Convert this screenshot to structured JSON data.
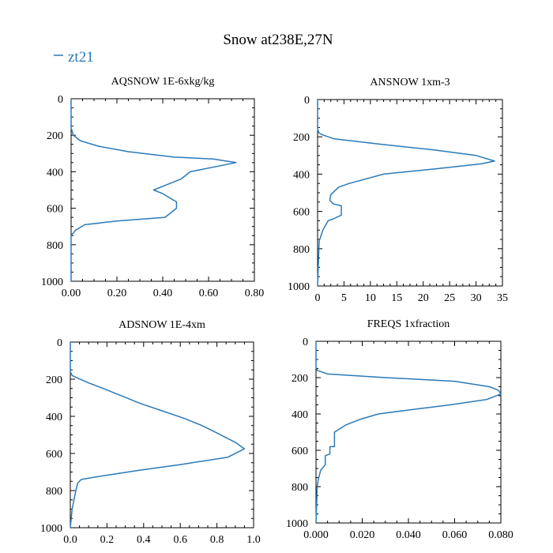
{
  "figure": {
    "title": "Snow at238E,27N",
    "legend_label": "zt21",
    "line_color": "#2a7ab9"
  },
  "chart_data": [
    {
      "type": "line",
      "title": "AQSNOW  1E-6xkg/kg",
      "xlim": [
        0,
        0.8
      ],
      "ylim": [
        1000,
        0
      ],
      "xticks": [
        0,
        0.2,
        0.4,
        0.6,
        0.8
      ],
      "xtick_labels": [
        "0.00",
        "0.20",
        "0.40",
        "0.60",
        "0.80"
      ],
      "yticks": [
        0,
        200,
        400,
        600,
        800,
        1000
      ],
      "ytick_labels": [
        "0",
        "200",
        "400",
        "600",
        "800",
        "1000"
      ],
      "series": [
        {
          "name": "zt21",
          "x": [
            0,
            0,
            0.005,
            0.01,
            0.04,
            0.12,
            0.25,
            0.45,
            0.62,
            0.72,
            0.52,
            0.48,
            0.42,
            0.36,
            0.4,
            0.44,
            0.46,
            0.46,
            0.41,
            0.2,
            0.06,
            0.02,
            0,
            0
          ],
          "y": [
            0,
            160,
            180,
            200,
            230,
            260,
            290,
            320,
            330,
            350,
            400,
            440,
            470,
            500,
            520,
            550,
            565,
            600,
            650,
            670,
            690,
            720,
            750,
            1000
          ]
        }
      ]
    },
    {
      "type": "line",
      "title": "ANSNOW  1xm-3",
      "xlim": [
        0,
        35
      ],
      "ylim": [
        1000,
        0
      ],
      "xticks": [
        0,
        5,
        10,
        15,
        20,
        25,
        30,
        35
      ],
      "xtick_labels": [
        "0",
        "5",
        "10",
        "15",
        "20",
        "25",
        "30",
        "35"
      ],
      "yticks": [
        0,
        200,
        400,
        600,
        800,
        1000
      ],
      "ytick_labels": [
        "0",
        "200",
        "400",
        "600",
        "800",
        "1000"
      ],
      "series": [
        {
          "name": "zt21",
          "x": [
            0,
            0,
            0.3,
            1,
            3,
            12,
            22,
            30,
            33.5,
            31,
            23,
            12.5,
            6,
            4,
            2.5,
            2.3,
            3,
            4.5,
            4.5,
            3,
            2,
            1,
            0.3,
            0
          ],
          "y": [
            0,
            160,
            180,
            190,
            210,
            240,
            270,
            300,
            330,
            345,
            370,
            400,
            450,
            470,
            510,
            540,
            560,
            570,
            620,
            640,
            650,
            700,
            760,
            1000
          ]
        }
      ]
    },
    {
      "type": "line",
      "title": "ADSNOW  1E-4xm",
      "xlim": [
        0,
        1.0
      ],
      "ylim": [
        1000,
        0
      ],
      "xticks": [
        0,
        0.2,
        0.4,
        0.6,
        0.8,
        1.0
      ],
      "xtick_labels": [
        "0.0",
        "0.2",
        "0.4",
        "0.6",
        "0.8",
        "1.0"
      ],
      "yticks": [
        0,
        200,
        400,
        600,
        800,
        1000
      ],
      "ytick_labels": [
        "0",
        "200",
        "400",
        "600",
        "800",
        "1000"
      ],
      "series": [
        {
          "name": "zt21",
          "x": [
            0,
            0,
            0.01,
            0.03,
            0.1,
            0.18,
            0.28,
            0.38,
            0.5,
            0.62,
            0.72,
            0.8,
            0.86,
            0.9,
            0.95,
            0.86,
            0.6,
            0.38,
            0.18,
            0.06,
            0.04,
            0.03,
            0.02,
            0.01,
            0
          ],
          "y": [
            0,
            160,
            180,
            190,
            220,
            250,
            290,
            330,
            370,
            410,
            450,
            490,
            520,
            540,
            575,
            620,
            660,
            690,
            720,
            740,
            760,
            800,
            850,
            900,
            1000
          ]
        }
      ]
    },
    {
      "type": "line",
      "title": "FREQS  1xfraction",
      "xlim": [
        0,
        0.08
      ],
      "ylim": [
        1000,
        0
      ],
      "xticks": [
        0,
        0.02,
        0.04,
        0.06,
        0.08
      ],
      "xtick_labels": [
        "0.000",
        "0.020",
        "0.040",
        "0.060",
        "0.080"
      ],
      "yticks": [
        0,
        200,
        400,
        600,
        800,
        1000
      ],
      "ytick_labels": [
        "0",
        "200",
        "400",
        "600",
        "800",
        "1000"
      ],
      "series": [
        {
          "name": "zt21",
          "x": [
            0,
            0,
            0.0005,
            0.005,
            0.03,
            0.06,
            0.075,
            0.079,
            0.08,
            0.074,
            0.058,
            0.039,
            0.027,
            0.019,
            0.013,
            0.008,
            0.008,
            0.006,
            0.006,
            0.004,
            0.004,
            0.002,
            0.001,
            0.0005,
            0
          ],
          "y": [
            0,
            140,
            160,
            180,
            200,
            220,
            250,
            270,
            290,
            320,
            350,
            380,
            400,
            430,
            460,
            500,
            580,
            580,
            620,
            630,
            680,
            710,
            760,
            800,
            1000
          ]
        }
      ]
    }
  ]
}
